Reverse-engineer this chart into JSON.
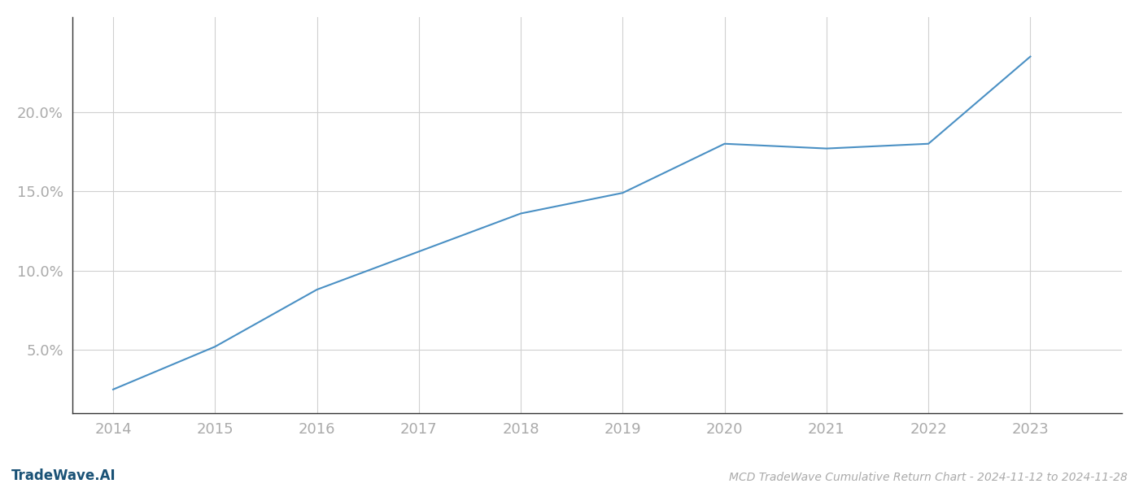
{
  "x_values": [
    2014,
    2015,
    2016,
    2017,
    2018,
    2019,
    2020,
    2021,
    2022,
    2023
  ],
  "y_values": [
    2.5,
    5.2,
    8.8,
    11.2,
    13.6,
    14.9,
    18.0,
    17.7,
    18.0,
    23.5
  ],
  "line_color": "#4a90c4",
  "line_width": 1.5,
  "background_color": "#ffffff",
  "grid_color": "#d0d0d0",
  "tick_color": "#aaaaaa",
  "spine_color": "#333333",
  "title": "MCD TradeWave Cumulative Return Chart - 2024-11-12 to 2024-11-28",
  "watermark": "TradeWave.AI",
  "watermark_color": "#1a5276",
  "yticks": [
    5.0,
    10.0,
    15.0,
    20.0
  ],
  "xticks": [
    2014,
    2015,
    2016,
    2017,
    2018,
    2019,
    2020,
    2021,
    2022,
    2023
  ],
  "ylim": [
    1.0,
    26.0
  ],
  "xlim": [
    2013.6,
    2023.9
  ],
  "tick_fontsize": 13,
  "title_fontsize": 10,
  "watermark_fontsize": 12
}
